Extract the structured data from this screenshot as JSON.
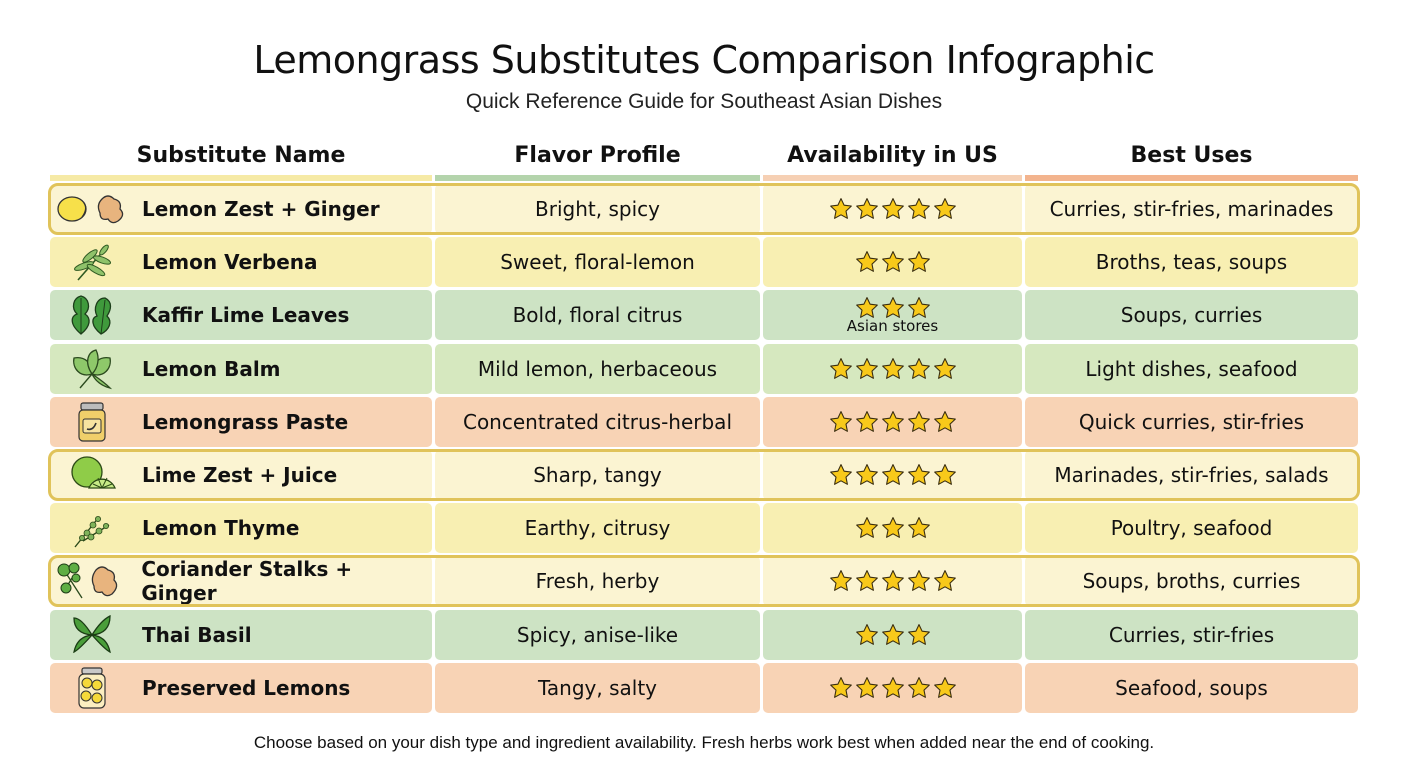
{
  "header": {
    "title": "Lemongrass Substitutes Comparison Infographic",
    "subtitle": "Quick Reference Guide for Southeast Asian Dishes"
  },
  "columns": [
    {
      "label": "Substitute Name",
      "bar_color": "#f6eaa6"
    },
    {
      "label": "Flavor Profile",
      "bar_color": "#b4d4ac"
    },
    {
      "label": "Availability in US",
      "bar_color": "#f6d0b4"
    },
    {
      "label": "Best Uses",
      "bar_color": "#f3b48e"
    }
  ],
  "colors": {
    "highlight_bg": "#fbf4d2",
    "highlight_border": "#e0c35a",
    "yellow_bg": "#f8efb2",
    "green_bg": "#cde3c4",
    "lightgreen_bg": "#d6e8bf",
    "peach_bg": "#f8d3b5",
    "star_fill": "#f8c91a",
    "star_stroke": "#3a2e10"
  },
  "rows": [
    {
      "name": "Lemon Zest + Ginger",
      "icon": "lemon-ginger-icon",
      "flavor": "Bright, spicy",
      "stars": 5,
      "note": "",
      "uses": "Curries, stir-fries, marinades",
      "style": "highlight"
    },
    {
      "name": "Lemon Verbena",
      "icon": "verbena-sprig-icon",
      "flavor": "Sweet, floral-lemon",
      "stars": 3,
      "note": "",
      "uses": "Broths, teas, soups",
      "style": "yellow"
    },
    {
      "name": "Kaffir Lime Leaves",
      "icon": "lime-leaves-icon",
      "flavor": "Bold, floral citrus",
      "stars": 3,
      "note": "Asian stores",
      "uses": "Soups, curries",
      "style": "green"
    },
    {
      "name": "Lemon Balm",
      "icon": "lemon-balm-leaf-icon",
      "flavor": "Mild lemon, herbaceous",
      "stars": 5,
      "note": "",
      "uses": "Light dishes, seafood",
      "style": "lightgreen"
    },
    {
      "name": "Lemongrass Paste",
      "icon": "paste-jar-icon",
      "flavor": "Concentrated citrus-herbal",
      "stars": 5,
      "note": "",
      "uses": "Quick curries, stir-fries",
      "style": "peach"
    },
    {
      "name": "Lime Zest + Juice",
      "icon": "lime-icon",
      "flavor": "Sharp, tangy",
      "stars": 5,
      "note": "",
      "uses": "Marinades, stir-fries, salads",
      "style": "highlight"
    },
    {
      "name": "Lemon Thyme",
      "icon": "thyme-sprig-icon",
      "flavor": "Earthy, citrusy",
      "stars": 3,
      "note": "",
      "uses": "Poultry, seafood",
      "style": "yellow"
    },
    {
      "name": "Coriander Stalks + Ginger",
      "icon": "coriander-ginger-icon",
      "flavor": "Fresh, herby",
      "stars": 5,
      "note": "",
      "uses": "Soups, broths, curries",
      "style": "highlight"
    },
    {
      "name": "Thai Basil",
      "icon": "basil-leaves-icon",
      "flavor": "Spicy, anise-like",
      "stars": 3,
      "note": "",
      "uses": "Curries, stir-fries",
      "style": "green"
    },
    {
      "name": "Preserved Lemons",
      "icon": "preserved-lemons-jar-icon",
      "flavor": "Tangy, salty",
      "stars": 5,
      "note": "",
      "uses": "Seafood, soups",
      "style": "peach"
    }
  ],
  "footer": {
    "note": "Choose based on your dish type and ingredient availability. Fresh herbs work best when added near the end of cooking."
  }
}
